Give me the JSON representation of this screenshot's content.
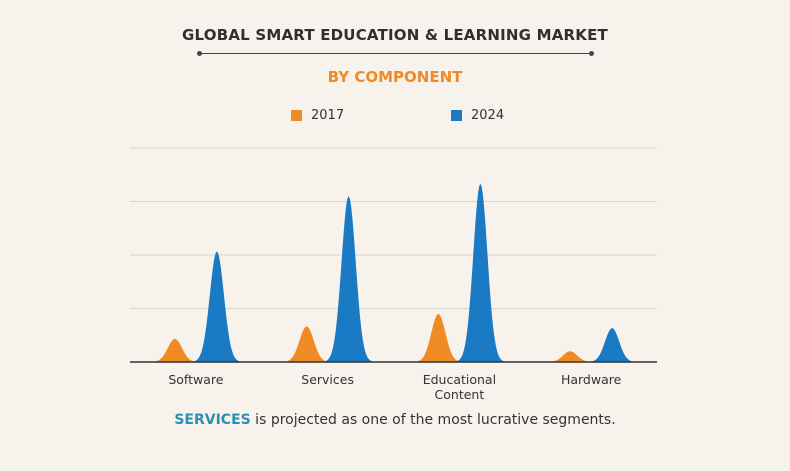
{
  "title": "GLOBAL SMART EDUCATION & LEARNING MARKET",
  "subtitle": "BY COMPONENT",
  "legend": [
    {
      "label": "2017",
      "color": "#f08a24"
    },
    {
      "label": "2024",
      "color": "#1a7bc4"
    }
  ],
  "caption": {
    "highlight": "SERVICES",
    "text": " is projected as one of the most lucrative segments."
  },
  "chart_data": {
    "type": "area",
    "categories": [
      "Software",
      "Services",
      "Educational\nContent",
      "Hardware"
    ],
    "series": [
      {
        "name": "2017",
        "color": "#f08a24",
        "values": [
          0.13,
          0.2,
          0.27,
          0.06
        ]
      },
      {
        "name": "2024",
        "color": "#1a7bc4",
        "values": [
          0.62,
          0.93,
          1.0,
          0.19
        ]
      }
    ],
    "ylim": [
      0,
      1.2
    ],
    "grid": true,
    "legend_position": "top-center",
    "colors": {
      "axis": "#333333",
      "grid": "#d8d4cc"
    }
  }
}
